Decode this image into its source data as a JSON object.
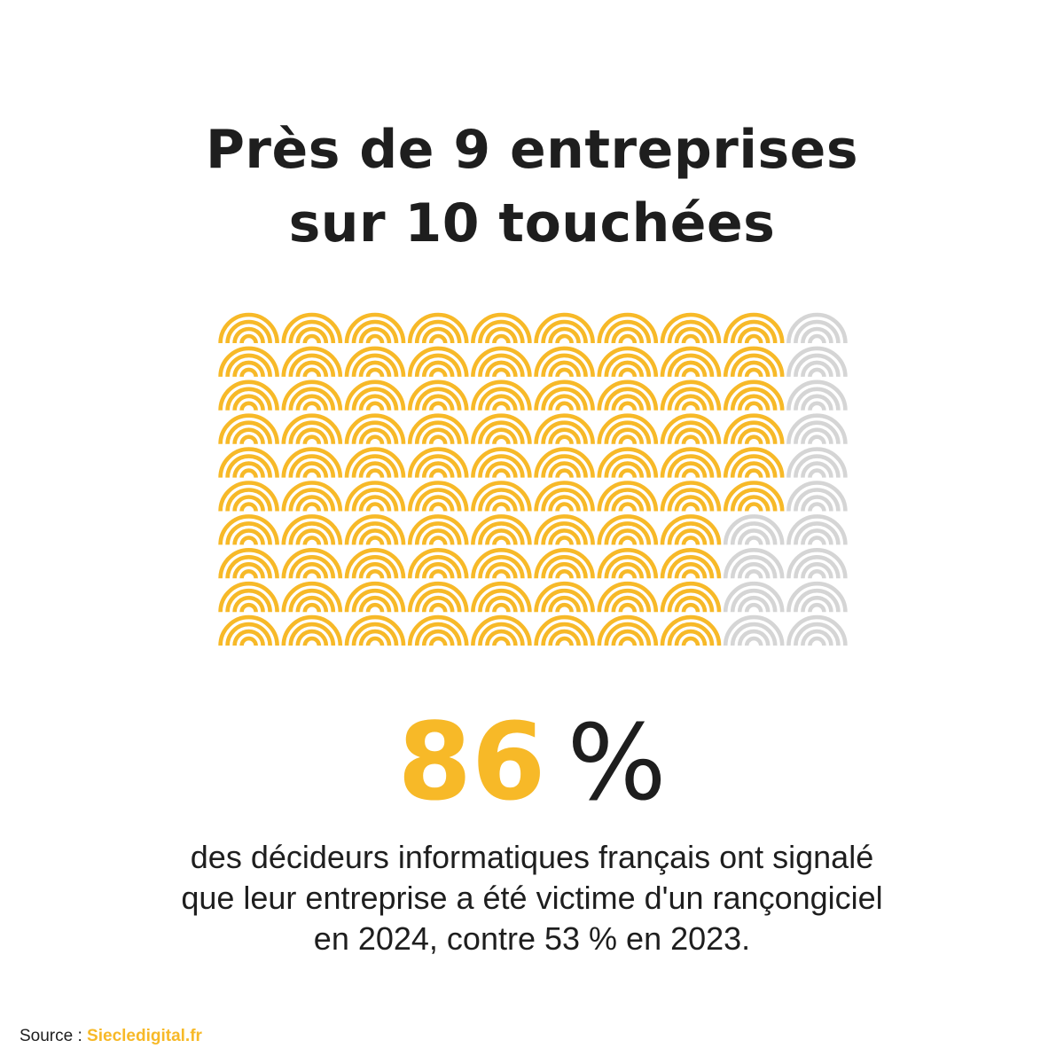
{
  "title_lines": [
    "Près de 9 entreprises",
    "sur 10 touchées"
  ],
  "stat": {
    "number": "86",
    "unit": "%"
  },
  "description_lines": [
    "des décideurs informatiques français ont signalé",
    "que leur entreprise a été victime d'un rançongiciel",
    "en 2024, contre 53 % en 2023."
  ],
  "source": {
    "label": "Source :",
    "link": "Siecledigital.fr"
  },
  "colors": {
    "filled": "#f7b928",
    "empty": "#d5d5d5",
    "text": "#1e1e1e"
  },
  "chart_data": {
    "type": "waffle",
    "rows": 10,
    "columns": 10,
    "filled": 86,
    "total": 100,
    "icon": "rainbow-arc-icon"
  }
}
